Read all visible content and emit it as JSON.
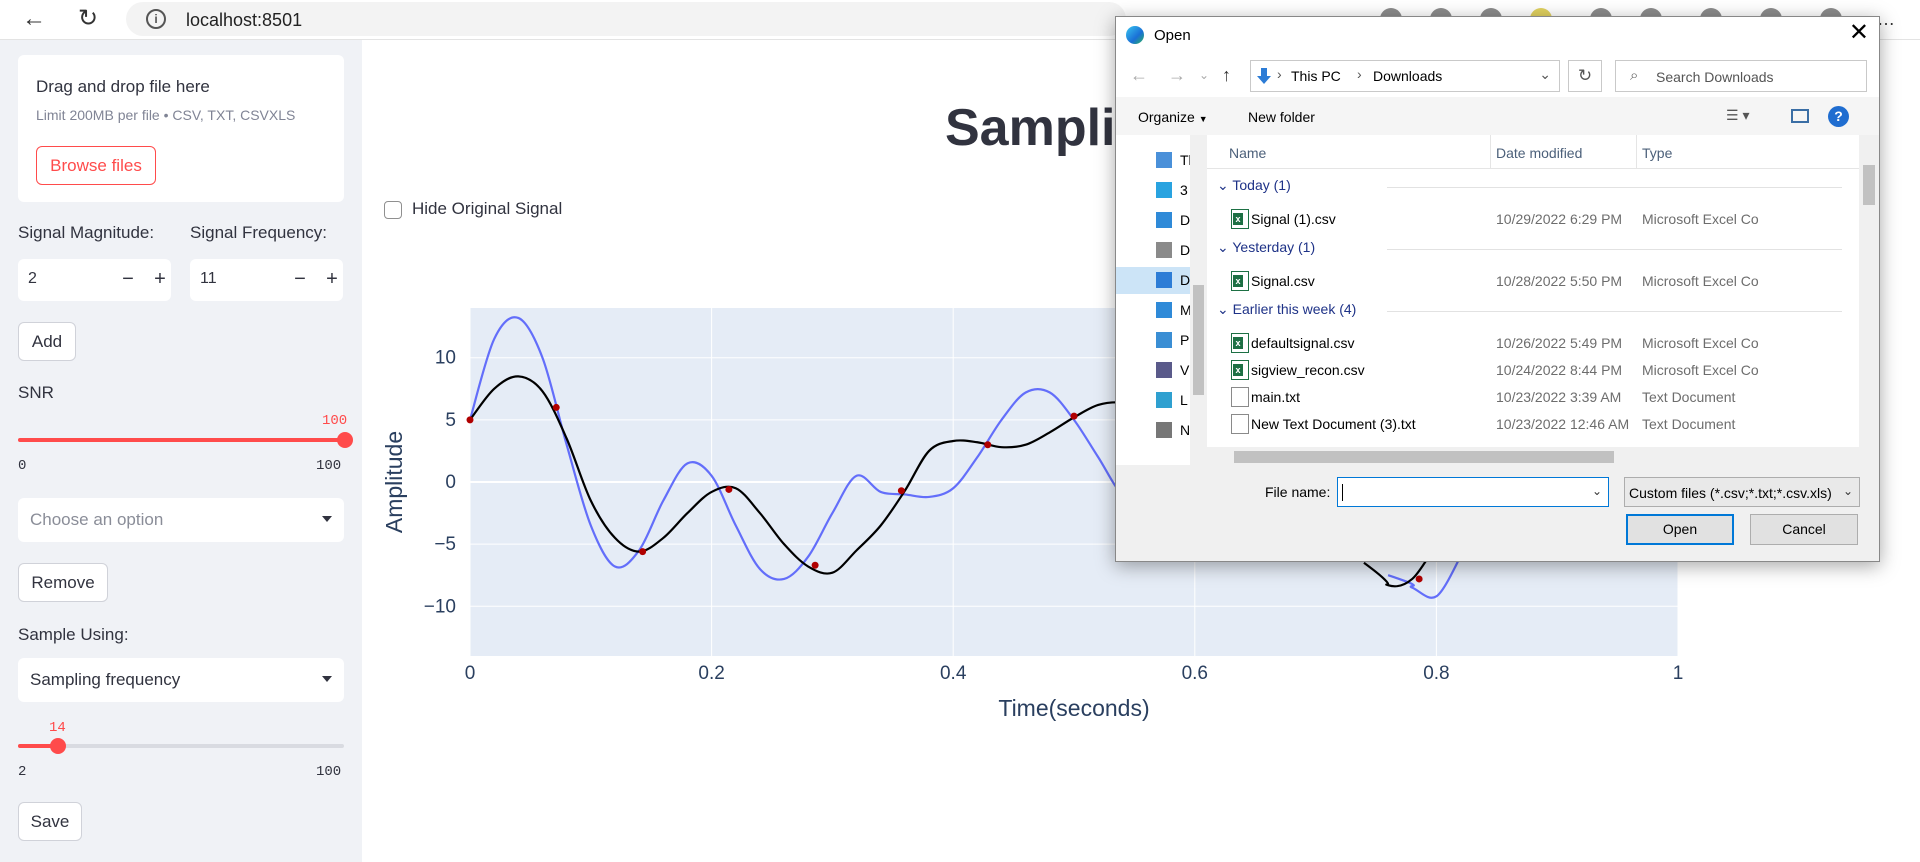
{
  "browser": {
    "url": "localhost:8501"
  },
  "sidebar": {
    "uploader": {
      "title": "Drag and drop file here",
      "limit": "Limit 200MB per file • CSV, TXT, CSVXLS",
      "browse_label": "Browse files"
    },
    "magnitude": {
      "label": "Signal Magnitude:",
      "value": "2"
    },
    "frequency": {
      "label": "Signal Frequency:",
      "value": "11"
    },
    "add_label": "Add",
    "snr": {
      "label": "SNR",
      "value": "100",
      "min": "0",
      "max": "100",
      "fraction": 1.0
    },
    "choose_placeholder": "Choose an option",
    "remove_label": "Remove",
    "sample_using": {
      "label": "Sample Using:",
      "value": "Sampling frequency"
    },
    "sample_slider": {
      "value": "14",
      "min": "2",
      "max": "100",
      "fraction": 0.1224
    },
    "save_label": "Save"
  },
  "main": {
    "title": "Sampling",
    "hide_original_label": "Hide Original Signal"
  },
  "chart_data": {
    "type": "line",
    "xlabel": "Time(seconds)",
    "ylabel": "Amplitude",
    "xlim": [
      0,
      1
    ],
    "ylim": [
      -14,
      14
    ],
    "xticks": [
      "0",
      "0.2",
      "0.4",
      "0.6",
      "0.8",
      "1"
    ],
    "xtick_values": [
      0,
      0.2,
      0.4,
      0.6,
      0.8,
      1
    ],
    "yticks": [
      "10",
      "5",
      "0",
      "−5",
      "−10"
    ],
    "ytick_values": [
      10,
      5,
      0,
      -5,
      -10
    ],
    "grid": true,
    "series": [
      {
        "color": "#636efa",
        "x": [
          0,
          0.02,
          0.04,
          0.06,
          0.08,
          0.1,
          0.12,
          0.14,
          0.16,
          0.18,
          0.2,
          0.22,
          0.24,
          0.26,
          0.28,
          0.3,
          0.32,
          0.34,
          0.36,
          0.38,
          0.4,
          0.42,
          0.44,
          0.46,
          0.48,
          0.5,
          0.52,
          0.54,
          0.56,
          0.76,
          0.78,
          0.8,
          0.82
        ],
        "y": [
          5,
          11.5,
          13.2,
          10,
          3,
          -3.5,
          -6.8,
          -5.5,
          -1.5,
          1.5,
          0.5,
          -3.5,
          -7,
          -7.8,
          -6,
          -2.5,
          0.5,
          -0.8,
          -1,
          -1.2,
          -0.5,
          2,
          5,
          7.2,
          7.2,
          5,
          2,
          -1,
          -1.5,
          -7.5,
          -8.5,
          -9.2,
          -6
        ]
      },
      {
        "color": "#000000",
        "x": [
          0,
          0.02,
          0.04,
          0.06,
          0.08,
          0.1,
          0.12,
          0.14,
          0.16,
          0.18,
          0.2,
          0.22,
          0.24,
          0.26,
          0.28,
          0.3,
          0.32,
          0.34,
          0.36,
          0.38,
          0.4,
          0.42,
          0.44,
          0.46,
          0.48,
          0.5,
          0.52,
          0.54,
          0.56,
          0.74,
          0.76,
          0.78,
          0.8
        ],
        "y": [
          5,
          7.5,
          8.5,
          7.3,
          3.5,
          -1.5,
          -4.5,
          -5.6,
          -4.5,
          -2.5,
          -0.8,
          -0.5,
          -2.5,
          -5,
          -6.8,
          -7.3,
          -5.5,
          -3.5,
          -0.7,
          2.5,
          3.3,
          3.2,
          2.8,
          3,
          4,
          5.2,
          6.2,
          6.4,
          6,
          -6.5,
          -8.3,
          -7.8,
          -5
        ]
      }
    ],
    "sample_points": {
      "color": "#b00000",
      "x": [
        0,
        0.0714,
        0.1429,
        0.2143,
        0.2857,
        0.3571,
        0.4286,
        0.5,
        0.7857
      ],
      "y": [
        5,
        6,
        -5.6,
        -0.6,
        -6.7,
        -0.7,
        3,
        5.3,
        -7.8
      ]
    }
  },
  "dialog": {
    "title": "Open",
    "path": [
      "This PC",
      "Downloads"
    ],
    "search_placeholder": "Search Downloads",
    "organize_label": "Organize",
    "new_folder_label": "New folder",
    "help_label": "?",
    "nav_items": [
      {
        "label": "Thi",
        "icon": "this-pc-icon",
        "color": "#4a90d9"
      },
      {
        "label": "3",
        "icon": "3d-objects-icon",
        "color": "#29a3e0"
      },
      {
        "label": "D",
        "icon": "desktop-icon",
        "color": "#2f8ad8"
      },
      {
        "label": "D",
        "icon": "documents-icon",
        "color": "#8a8a8a"
      },
      {
        "label": "D",
        "icon": "downloads-icon",
        "color": "#2c7cd6"
      },
      {
        "label": "M",
        "icon": "music-icon",
        "color": "#2f8ad8"
      },
      {
        "label": "P",
        "icon": "pictures-icon",
        "color": "#3a8ed4"
      },
      {
        "label": "V",
        "icon": "videos-icon",
        "color": "#5a5a8a"
      },
      {
        "label": "L",
        "icon": "local-disk-icon",
        "color": "#2fa0d0"
      },
      {
        "label": "N",
        "icon": "network-drive-icon",
        "color": "#777777"
      }
    ],
    "columns": {
      "name": "Name",
      "date": "Date modified",
      "type": "Type"
    },
    "groups": [
      {
        "label": "Today (1)",
        "files": [
          {
            "name": "Signal (1).csv",
            "date": "10/29/2022 6:29 PM",
            "type": "Microsoft Excel Co",
            "kind": "excel"
          }
        ]
      },
      {
        "label": "Yesterday (1)",
        "files": [
          {
            "name": "Signal.csv",
            "date": "10/28/2022 5:50 PM",
            "type": "Microsoft Excel Co",
            "kind": "excel"
          }
        ]
      },
      {
        "label": "Earlier this week (4)",
        "files": [
          {
            "name": "defaultsignal.csv",
            "date": "10/26/2022 5:49 PM",
            "type": "Microsoft Excel Co",
            "kind": "excel"
          },
          {
            "name": "sigview_recon.csv",
            "date": "10/24/2022 8:44 PM",
            "type": "Microsoft Excel Co",
            "kind": "excel"
          },
          {
            "name": "main.txt",
            "date": "10/23/2022 3:39 AM",
            "type": "Text Document",
            "kind": "text"
          },
          {
            "name": "New Text Document (3).txt",
            "date": "10/23/2022 12:46 AM",
            "type": "Text Document",
            "kind": "text"
          }
        ]
      }
    ],
    "file_name_label": "File name:",
    "file_name_value": "",
    "filter": "Custom files (*.csv;*.txt;*.csv.xls)",
    "open_label": "Open",
    "cancel_label": "Cancel"
  }
}
